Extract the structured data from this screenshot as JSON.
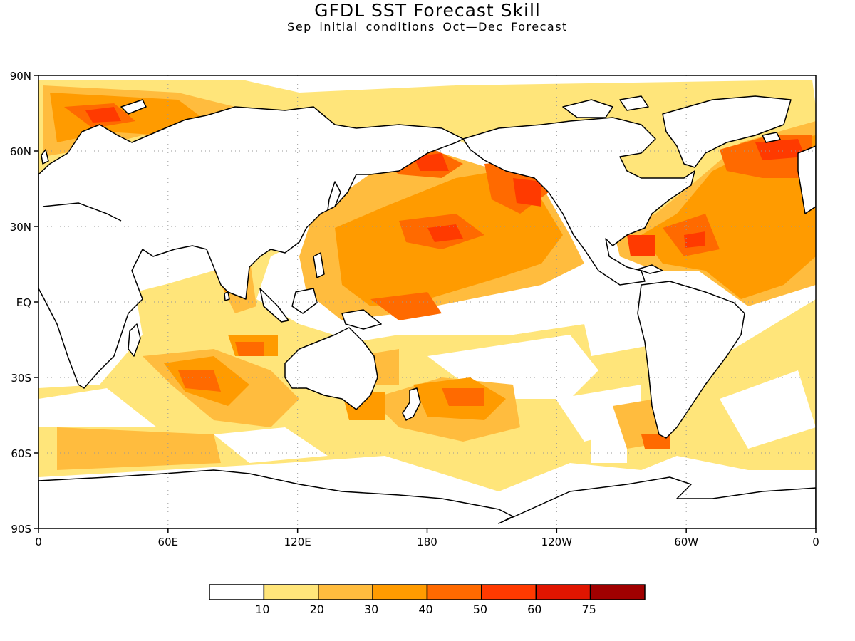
{
  "header": {
    "title": "GFDL SST Forecast Skill",
    "subtitle": "Sep initial conditions  Oct—Dec Forecast"
  },
  "map": {
    "lon_range": [
      0,
      360
    ],
    "lat_range": [
      -90,
      90
    ],
    "grid": true,
    "x_ticks": [
      {
        "lon": 0,
        "label": "0"
      },
      {
        "lon": 60,
        "label": "60E"
      },
      {
        "lon": 120,
        "label": "120E"
      },
      {
        "lon": 180,
        "label": "180"
      },
      {
        "lon": 240,
        "label": "120W"
      },
      {
        "lon": 300,
        "label": "60W"
      },
      {
        "lon": 360,
        "label": "0"
      }
    ],
    "y_ticks": [
      {
        "lat": 90,
        "label": "90N"
      },
      {
        "lat": 60,
        "label": "60N"
      },
      {
        "lat": 30,
        "label": "30N"
      },
      {
        "lat": 0,
        "label": "EQ"
      },
      {
        "lat": -30,
        "label": "30S"
      },
      {
        "lat": -60,
        "label": "60S"
      },
      {
        "lat": -90,
        "label": "90S"
      }
    ]
  },
  "colorbar": {
    "colors": [
      "#ffffff",
      "#ffe57a",
      "#ffbc3e",
      "#ff9b00",
      "#ff6a00",
      "#ff3a00",
      "#e01500",
      "#a00000"
    ],
    "labels": [
      "10",
      "20",
      "30",
      "40",
      "50",
      "60",
      "75"
    ]
  }
}
